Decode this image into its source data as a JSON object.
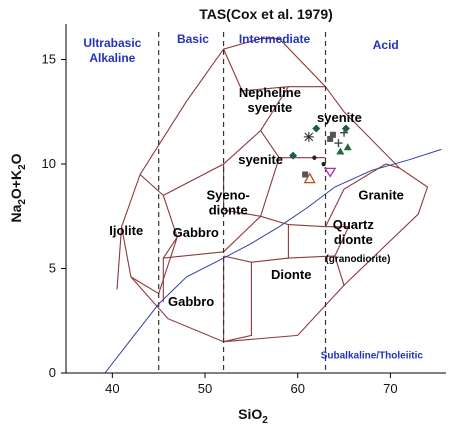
{
  "chart_data": {
    "type": "scatter",
    "title": "TAS(Cox et al. 1979)",
    "xlabel": {
      "main": "SiO",
      "sub": "2"
    },
    "ylabel": {
      "p1": "Na",
      "s1": "2",
      "p2": "O+K",
      "s2": "2",
      "p3": "O"
    },
    "xlim": [
      35,
      76
    ],
    "ylim": [
      0,
      16.7
    ],
    "xticks": [
      40,
      50,
      60,
      70
    ],
    "yticks": [
      0,
      5,
      10,
      15
    ],
    "tick_labels": {
      "x": [
        "40",
        "50",
        "60",
        "70"
      ],
      "y": [
        "0",
        "5",
        "10",
        "15"
      ]
    },
    "vertical_dividers": [
      45,
      52,
      63
    ],
    "categories": [
      {
        "lines": [
          "Ultrabasic",
          "Alkaline"
        ],
        "x": 40.0,
        "y": 15.6,
        "color": "#2233bb"
      },
      {
        "lines": [
          "Basic"
        ],
        "x": 48.7,
        "y": 15.8,
        "color": "#2233bb"
      },
      {
        "lines": [
          "Intermediate"
        ],
        "x": 57.5,
        "y": 15.8,
        "color": "#2233bb"
      },
      {
        "lines": [
          "Acid"
        ],
        "x": 69.5,
        "y": 15.5,
        "color": "#2233bb"
      }
    ],
    "boundary_color": "#8b3a3a",
    "fields": [
      [
        [
          41,
          7.0
        ],
        [
          43,
          9.5
        ],
        [
          48,
          13.0
        ],
        [
          52,
          15.5
        ],
        [
          56,
          16.0
        ],
        [
          58,
          16.0
        ],
        [
          63,
          13.7
        ],
        [
          65,
          12.5
        ],
        [
          71,
          9.8
        ],
        [
          74,
          8.9
        ],
        [
          73,
          7.6
        ],
        [
          65,
          4.2
        ],
        [
          60,
          1.8
        ],
        [
          52,
          1.5
        ],
        [
          46,
          2.6
        ],
        [
          42,
          4.6
        ],
        [
          41,
          7.0
        ]
      ],
      [
        [
          40.5,
          4.0
        ],
        [
          41,
          7.0
        ]
      ],
      [
        [
          43,
          9.5
        ],
        [
          45.5,
          8.5
        ],
        [
          47,
          6.5
        ],
        [
          45,
          3.8
        ],
        [
          42,
          4.6
        ]
      ],
      [
        [
          45.5,
          8.5
        ],
        [
          52,
          10.0
        ],
        [
          56,
          11.6
        ],
        [
          59,
          13.7
        ],
        [
          63,
          13.7
        ]
      ],
      [
        [
          52,
          15.5
        ],
        [
          54,
          13.5
        ],
        [
          59,
          13.7
        ]
      ],
      [
        [
          56,
          11.6
        ],
        [
          58,
          10.3
        ],
        [
          63,
          10.3
        ]
      ],
      [
        [
          52,
          10.0
        ],
        [
          52,
          7.8
        ],
        [
          56,
          7.5
        ],
        [
          58,
          10.3
        ]
      ],
      [
        [
          56,
          7.5
        ],
        [
          59,
          7.1
        ],
        [
          63,
          7.0
        ],
        [
          65,
          8.8
        ],
        [
          69.5,
          10.0
        ],
        [
          71,
          9.8
        ]
      ],
      [
        [
          45.5,
          5.5
        ],
        [
          52,
          5.8
        ],
        [
          56,
          7.5
        ]
      ],
      [
        [
          47,
          6.5
        ],
        [
          45.5,
          5.5
        ],
        [
          45.5,
          3.4
        ]
      ],
      [
        [
          52,
          5.6
        ],
        [
          52,
          2.8
        ],
        [
          52,
          1.5
        ]
      ],
      [
        [
          52,
          5.6
        ],
        [
          55,
          5.3
        ],
        [
          55,
          1.8
        ],
        [
          52,
          1.5
        ]
      ],
      [
        [
          55,
          5.3
        ],
        [
          59,
          5.5
        ],
        [
          59,
          7.1
        ]
      ],
      [
        [
          59,
          5.5
        ],
        [
          64,
          5.6
        ],
        [
          65,
          4.2
        ]
      ],
      [
        [
          64,
          5.6
        ],
        [
          65.5,
          7.0
        ],
        [
          63,
          7.0
        ]
      ]
    ],
    "field_labels": [
      {
        "lines": [
          "Ijolite"
        ],
        "x": 41.5,
        "y": 6.6
      },
      {
        "lines": [
          "Gabbro"
        ],
        "x": 49.0,
        "y": 6.5
      },
      {
        "lines": [
          "Gabbro"
        ],
        "x": 48.5,
        "y": 3.2
      },
      {
        "lines": [
          "Syeno-",
          "dionte"
        ],
        "x": 52.5,
        "y": 8.3
      },
      {
        "lines": [
          "syenite"
        ],
        "x": 56.0,
        "y": 10.0
      },
      {
        "lines": [
          "Nepheline",
          "syenite"
        ],
        "x": 57.0,
        "y": 13.2
      },
      {
        "lines": [
          "syenite"
        ],
        "x": 64.5,
        "y": 12.0
      },
      {
        "lines": [
          "Granite"
        ],
        "x": 69.0,
        "y": 8.3
      },
      {
        "lines": [
          "Dionte"
        ],
        "x": 59.3,
        "y": 4.5
      },
      {
        "lines": [
          "Quartz",
          "dionte"
        ],
        "x": 66.0,
        "y": 6.9
      }
    ],
    "small_field_labels": [
      {
        "text": "(granodiorite)",
        "x": 66.5,
        "y": 5.3
      }
    ],
    "subalkaline_line": {
      "label": "Subalkaline/Tholeiitic",
      "label_x": 68.0,
      "label_y": 0.7,
      "color": "#2d3fa6",
      "points": [
        [
          39.2,
          0.0
        ],
        [
          42.0,
          1.6
        ],
        [
          45.0,
          3.3
        ],
        [
          48.0,
          4.6
        ],
        [
          52.0,
          5.5
        ],
        [
          55.0,
          6.2
        ],
        [
          58.0,
          7.0
        ],
        [
          61.0,
          7.9
        ],
        [
          64.0,
          8.9
        ],
        [
          68.0,
          9.7
        ],
        [
          72.0,
          10.2
        ],
        [
          75.5,
          10.7
        ]
      ]
    },
    "series": [
      {
        "marker": "star",
        "color": "#333333",
        "points": [
          [
            61.2,
            11.3
          ]
        ]
      },
      {
        "marker": "diamond",
        "color": "#1f5a4f",
        "points": [
          [
            59.5,
            10.4
          ],
          [
            62.0,
            11.7
          ],
          [
            65.2,
            11.7
          ]
        ]
      },
      {
        "marker": "square",
        "color": "#555555",
        "points": [
          [
            60.8,
            9.5
          ],
          [
            63.5,
            11.2
          ],
          [
            63.8,
            11.4
          ]
        ]
      },
      {
        "marker": "triangle",
        "color": "#1f6b3a",
        "points": [
          [
            64.6,
            10.6
          ],
          [
            65.4,
            10.8
          ]
        ]
      },
      {
        "marker": "triangle-open",
        "color": "#c44a1e",
        "points": [
          [
            61.3,
            9.3
          ]
        ]
      },
      {
        "marker": "triangle-down",
        "color": "#b02ab0",
        "points": [
          [
            63.5,
            9.6
          ]
        ]
      },
      {
        "marker": "dot",
        "color": "#222222",
        "points": [
          [
            62.8,
            10.0
          ],
          [
            61.8,
            10.3
          ]
        ]
      },
      {
        "marker": "plus",
        "color": "#444444",
        "points": [
          [
            64.4,
            11.0
          ],
          [
            65.0,
            11.5
          ]
        ]
      }
    ]
  }
}
